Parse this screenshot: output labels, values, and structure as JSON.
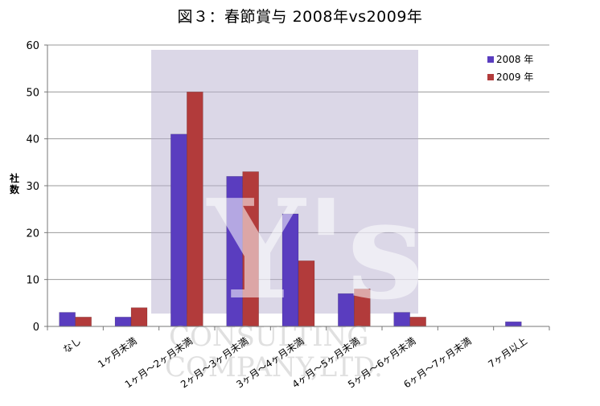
{
  "chart_data": {
    "type": "bar",
    "title": "図３：春節賞与 2008年vs2009年",
    "ylabel": "社数",
    "ylim": [
      0,
      60
    ],
    "yticks": [
      0,
      10,
      20,
      30,
      40,
      50,
      60
    ],
    "grid": true,
    "legend_position": "top-right",
    "categories": [
      "なし",
      "1ヶ月未満",
      "1ヶ月〜2ヶ月未満",
      "2ヶ月〜3ヶ月未満",
      "3ヶ月〜4ヶ月未満",
      "4ヶ月〜5ヶ月未満",
      "5ヶ月〜6ヶ月未満",
      "6ヶ月〜7ヶ月未満",
      "7ヶ月以上"
    ],
    "series": [
      {
        "name": "2008 年",
        "color": "#5a3dbf",
        "values": [
          3,
          2,
          41,
          32,
          24,
          7,
          3,
          0,
          1
        ]
      },
      {
        "name": "2009 年",
        "color": "#b23b3b",
        "values": [
          2,
          4,
          50,
          33,
          14,
          8,
          2,
          0,
          0
        ]
      }
    ],
    "watermark": "Y's CONSULTING COMPANY,LTD."
  }
}
